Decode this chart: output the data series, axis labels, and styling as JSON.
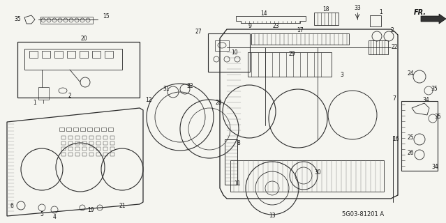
{
  "background_color": "#f5f5f0",
  "diagram_code": "5G03-81201 A",
  "fr_label": "FR.",
  "figsize": [
    6.39,
    3.2
  ],
  "dpi": 100,
  "img_url": "",
  "lc": "#2a2a2a",
  "lw_main": 0.8,
  "lw_thin": 0.5,
  "label_fs": 5.5,
  "label_color": "#111111"
}
